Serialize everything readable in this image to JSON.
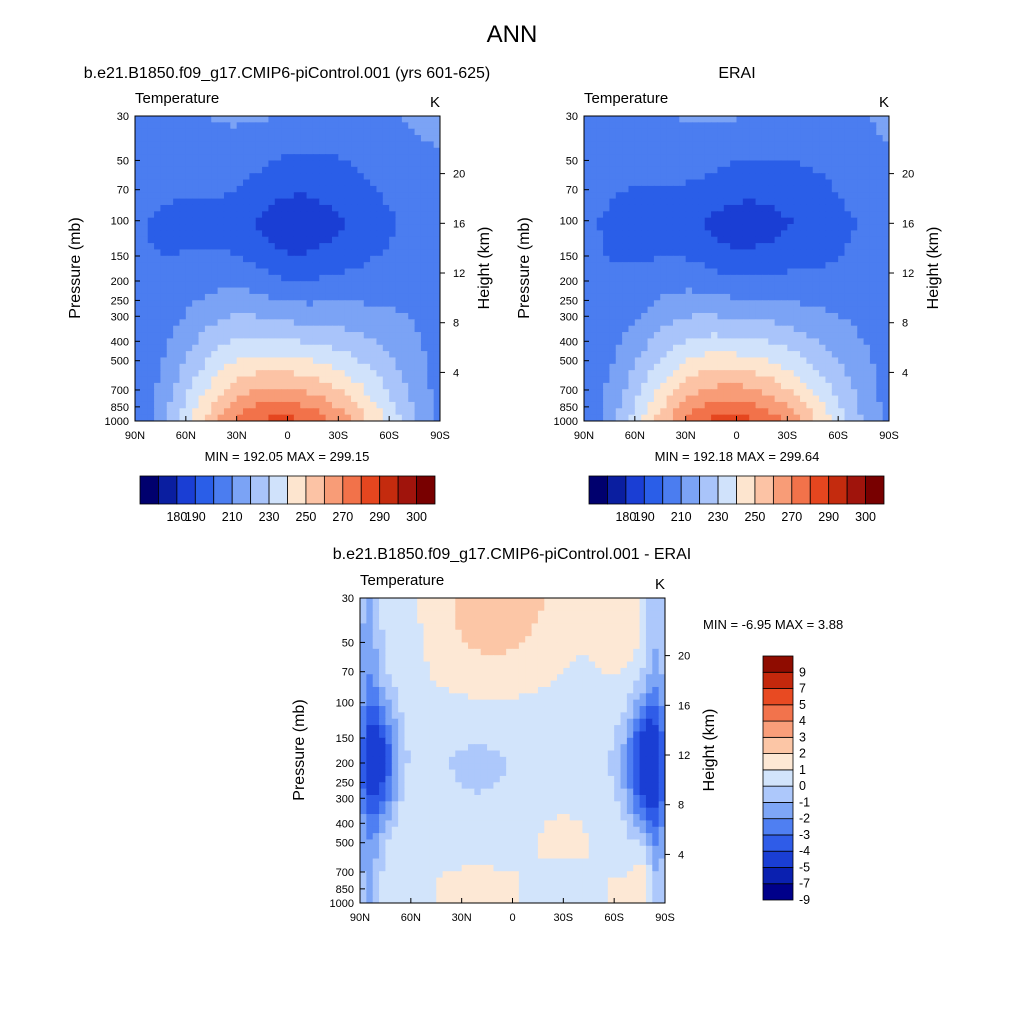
{
  "figure": {
    "title": "ANN",
    "panel_titles": [
      "b.e21.B1850.f09_g17.CMIP6-piControl.001 (yrs 601-625)",
      "ERAI",
      "b.e21.B1850.f09_g17.CMIP6-piControl.001 - ERAI"
    ],
    "variable_label": "Temperature",
    "unit_label": "K",
    "y_left_label": "Pressure (mb)",
    "y_right_label": "Height (km)",
    "stats": [
      "MIN = 192.05  MAX = 299.15",
      "MIN = 192.18  MAX = 299.64",
      "MIN =  -6.95  MAX =   3.88"
    ]
  },
  "chart_data": [
    {
      "type": "heatmap",
      "title": "b.e21.B1850.f09_g17.CMIP6-piControl.001 (yrs 601-625)",
      "variable": "Temperature",
      "units": "K",
      "xlabel": "",
      "ylabel": "Pressure (mb)",
      "ylabel_right": "Height (km)",
      "x_ticks": [
        "90N",
        "60N",
        "30N",
        "0",
        "30S",
        "60S",
        "90S"
      ],
      "x_values": [
        90,
        60,
        30,
        0,
        -30,
        -60,
        -90
      ],
      "y_ticks": [
        30,
        50,
        70,
        100,
        150,
        200,
        250,
        300,
        400,
        500,
        700,
        850,
        1000
      ],
      "y_scale": "log",
      "ylim": [
        1000,
        30
      ],
      "right_ticks_km": [
        4,
        8,
        12,
        16,
        20
      ],
      "min": 192.05,
      "max": 299.15,
      "colorbar": {
        "levels": [
          180,
          190,
          200,
          210,
          220,
          230,
          240,
          250,
          260,
          270,
          280,
          290,
          300
        ],
        "labels": [
          "180",
          "190",
          "210",
          "230",
          "250",
          "270",
          "290",
          "300"
        ],
        "colors": [
          "#00006e",
          "#0a1ea0",
          "#1a3ed4",
          "#2a5ee8",
          "#4b7df0",
          "#7ba3f5",
          "#a9c4fa",
          "#d0e2fb",
          "#fde5cf",
          "#fcc3a5",
          "#f89c77",
          "#f2724a",
          "#e5461f",
          "#c42b0e",
          "#a0140c",
          "#780000"
        ]
      }
    },
    {
      "type": "heatmap",
      "title": "ERAI",
      "variable": "Temperature",
      "units": "K",
      "xlabel": "",
      "ylabel": "Pressure (mb)",
      "ylabel_right": "Height (km)",
      "x_ticks": [
        "90N",
        "60N",
        "30N",
        "0",
        "30S",
        "60S",
        "90S"
      ],
      "x_values": [
        90,
        60,
        30,
        0,
        -30,
        -60,
        -90
      ],
      "y_ticks": [
        30,
        50,
        70,
        100,
        150,
        200,
        250,
        300,
        400,
        500,
        700,
        850,
        1000
      ],
      "y_scale": "log",
      "ylim": [
        1000,
        30
      ],
      "right_ticks_km": [
        4,
        8,
        12,
        16,
        20
      ],
      "min": 192.18,
      "max": 299.64,
      "colorbar": {
        "levels": [
          180,
          190,
          200,
          210,
          220,
          230,
          240,
          250,
          260,
          270,
          280,
          290,
          300
        ],
        "labels": [
          "180",
          "190",
          "210",
          "230",
          "250",
          "270",
          "290",
          "300"
        ],
        "colors": [
          "#00006e",
          "#0a1ea0",
          "#1a3ed4",
          "#2a5ee8",
          "#4b7df0",
          "#7ba3f5",
          "#a9c4fa",
          "#d0e2fb",
          "#fde5cf",
          "#fcc3a5",
          "#f89c77",
          "#f2724a",
          "#e5461f",
          "#c42b0e",
          "#a0140c",
          "#780000"
        ]
      }
    },
    {
      "type": "heatmap",
      "title": "b.e21.B1850.f09_g17.CMIP6-piControl.001 - ERAI",
      "variable": "Temperature",
      "units": "K",
      "xlabel": "",
      "ylabel": "Pressure (mb)",
      "ylabel_right": "Height (km)",
      "x_ticks": [
        "90N",
        "60N",
        "30N",
        "0",
        "30S",
        "60S",
        "90S"
      ],
      "x_values": [
        90,
        60,
        30,
        0,
        -30,
        -60,
        -90
      ],
      "y_ticks": [
        30,
        50,
        70,
        100,
        150,
        200,
        250,
        300,
        400,
        500,
        700,
        850,
        1000
      ],
      "y_scale": "log",
      "ylim": [
        1000,
        30
      ],
      "right_ticks_km": [
        4,
        8,
        12,
        16,
        20
      ],
      "min": -6.95,
      "max": 3.88,
      "colorbar": {
        "levels": [
          -9,
          -7,
          -5,
          -4,
          -3,
          -2,
          -1,
          0,
          1,
          2,
          3,
          4,
          5,
          7,
          9
        ],
        "labels": [
          "9",
          "7",
          "5",
          "4",
          "3",
          "2",
          "1",
          "0",
          "-1",
          "-2",
          "-3",
          "-4",
          "-5",
          "-7",
          "-9"
        ],
        "colors": [
          "#00008a",
          "#0a20b0",
          "#1a3ed4",
          "#2f5ce8",
          "#4f7ff2",
          "#7ea6f6",
          "#adc8fb",
          "#d2e4fb",
          "#fde8d5",
          "#fcc6a6",
          "#f99e7a",
          "#f2734c",
          "#e84a22",
          "#c4280c",
          "#8f0c00"
        ]
      }
    }
  ]
}
